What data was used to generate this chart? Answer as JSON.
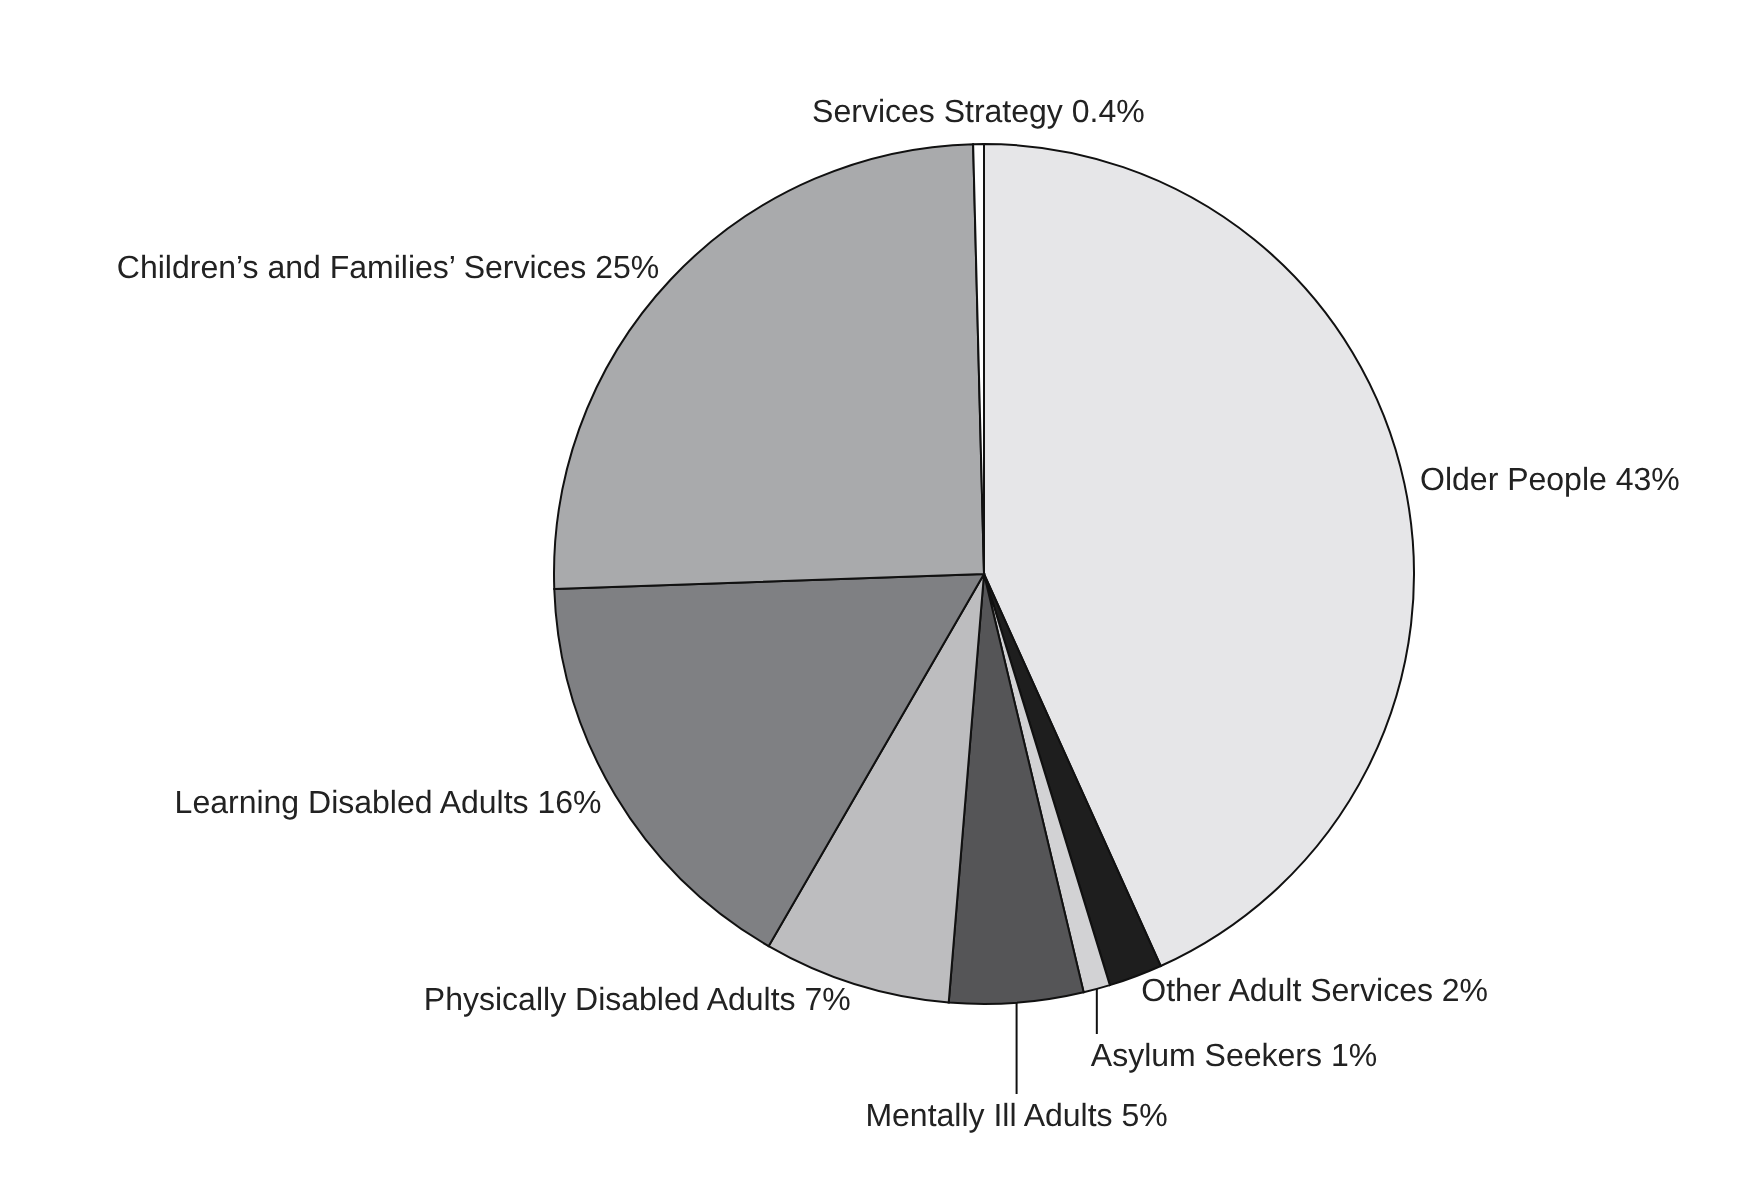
{
  "chart_data": {
    "type": "pie",
    "categories": [
      "Older People",
      "Other Adult Services",
      "Asylum Seekers",
      "Mentally Ill Adults",
      "Physically Disabled Adults",
      "Learning Disabled Adults",
      "Children’s and Families’ Services",
      "Services Strategy"
    ],
    "values": [
      43,
      2,
      1,
      5,
      7,
      16,
      25,
      0.4
    ],
    "colors": [
      "#e6e6e8",
      "#1e1e1e",
      "#d2d2d4",
      "#555557",
      "#bdbdbf",
      "#7f8083",
      "#a9aaac",
      "#ffffff"
    ],
    "value_labels": [
      "43%",
      "2%",
      "1%",
      "5%",
      "7%",
      "16%",
      "25%",
      "0.4%"
    ]
  }
}
